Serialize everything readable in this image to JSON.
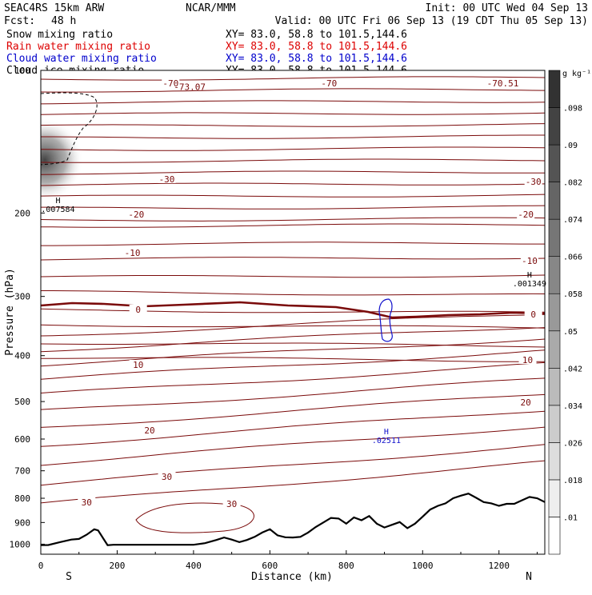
{
  "header": {
    "model": "SEAC4RS 15km ARW",
    "center": "NCAR/MMM",
    "init": "Init: 00 UTC Wed 04 Sep 13",
    "fcst_label": "Fcst:",
    "fcst_value": "48 h",
    "valid": "Valid: 00 UTC Fri 06 Sep 13 (19 CDT Thu 05 Sep 13)"
  },
  "fields": [
    {
      "label": "Snow mixing ratio",
      "xy": "XY=  83.0, 58.8 to 101.5,144.6",
      "color": "#000000"
    },
    {
      "label": "Rain water mixing ratio",
      "xy": "XY=  83.0, 58.8 to 101.5,144.6",
      "color": "#dd0000"
    },
    {
      "label": "Cloud water mixing ratio",
      "xy": "XY=  83.0, 58.8 to 101.5,144.6",
      "color": "#0000cc"
    },
    {
      "label": "Cloud ice mixing ratio",
      "xy": "XY=  83.0, 58.8 to 101.5,144.6",
      "color": "#000000"
    }
  ],
  "colors": {
    "temperature_contour": "#7a0a0a",
    "cloud_water_contour": "#1010cc",
    "terrain": "#000000",
    "snow_shading": "#444444"
  },
  "chart_data": {
    "type": "cross-section contour",
    "xlabel": "Distance (km)",
    "ylabel": "Pressure (hPa)",
    "xlim": [
      0,
      1320
    ],
    "ylim": [
      1050,
      100
    ],
    "y_scale": "log-pressure",
    "x_ticks": [
      0,
      200,
      400,
      600,
      800,
      1000,
      1200
    ],
    "y_ticks": [
      1000,
      900,
      800,
      700,
      600,
      500,
      400,
      300,
      200,
      100
    ],
    "y_tick_labels": [
      "1000",
      "900",
      "800",
      "700",
      "600",
      "500",
      "400",
      "300",
      "200",
      "100"
    ],
    "endpoints": {
      "left": "S",
      "right": "N"
    },
    "colorbar": {
      "unit": "g kg⁻¹",
      "levels": [
        0.01,
        0.018,
        0.026,
        0.034,
        0.042,
        0.05,
        0.058,
        0.066,
        0.074,
        0.082,
        0.09,
        0.098
      ],
      "labels": [
        ".01",
        ".018",
        ".026",
        ".034",
        ".042",
        ".05",
        ".058",
        ".066",
        ".074",
        ".082",
        ".09",
        ".098"
      ]
    },
    "temperature_contours_C": {
      "interval": 5,
      "labeled": [
        {
          "value": -70,
          "label": "-70",
          "x_km": 340
        },
        {
          "value": -70,
          "label": "-70",
          "x_km": 755
        },
        {
          "value": -30,
          "label": "-30",
          "x_km": 330
        },
        {
          "value": -30,
          "label": "-30",
          "x_km": 1290
        },
        {
          "value": -20,
          "label": "-20",
          "x_km": 250
        },
        {
          "value": -20,
          "label": "-20",
          "x_km": 1270
        },
        {
          "value": -10,
          "label": "-10",
          "x_km": 240
        },
        {
          "value": -10,
          "label": "-10",
          "x_km": 1280
        },
        {
          "value": 0,
          "label": "0",
          "x_km": 255
        },
        {
          "value": 0,
          "label": "0",
          "x_km": 1290
        },
        {
          "value": 10,
          "label": "10",
          "x_km": 255
        },
        {
          "value": 10,
          "label": "10",
          "x_km": 1275
        },
        {
          "value": 20,
          "label": "20",
          "x_km": 285
        },
        {
          "value": 20,
          "label": "20",
          "x_km": 1270
        },
        {
          "value": 30,
          "label": "30",
          "x_km": 120
        },
        {
          "value": 30,
          "label": "30",
          "x_km": 330
        },
        {
          "value": 30,
          "label": "30",
          "x_km": 500
        }
      ]
    },
    "extrema": [
      {
        "kind": "H",
        "value": "-73.07",
        "x_km": 390,
        "p_hPa": 110
      },
      {
        "kind": "H",
        "value": "-70.51",
        "x_km": 1210,
        "p_hPa": 108
      },
      {
        "kind": "H",
        "value": ".007584",
        "x_km": 45,
        "p_hPa": 195,
        "field": "snow"
      },
      {
        "kind": "H",
        "value": ".001349",
        "x_km": 1280,
        "p_hPa": 280,
        "field": "snow"
      },
      {
        "kind": "H",
        "value": ".02511",
        "x_km": 905,
        "p_hPa": 600,
        "field": "cloud water"
      }
    ],
    "terrain_pressure_hPa": {
      "x_km": [
        0,
        20,
        50,
        80,
        100,
        120,
        140,
        150,
        175,
        190,
        250,
        300,
        350,
        380,
        400,
        430,
        460,
        480,
        500,
        520,
        540,
        560,
        580,
        600,
        620,
        640,
        660,
        680,
        700,
        720,
        740,
        760,
        780,
        800,
        820,
        840,
        860,
        880,
        900,
        920,
        940,
        960,
        980,
        1000,
        1020,
        1040,
        1060,
        1080,
        1100,
        1120,
        1140,
        1160,
        1180,
        1200,
        1220,
        1240,
        1260,
        1280,
        1300,
        1320
      ],
      "p": [
        1005,
        1004,
        990,
        978,
        975,
        955,
        930,
        935,
        1005,
        1003,
        1003,
        1003,
        1003,
        1003,
        1003,
        995,
        980,
        968,
        978,
        990,
        980,
        965,
        945,
        930,
        958,
        967,
        968,
        965,
        945,
        920,
        900,
        880,
        883,
        905,
        878,
        890,
        872,
        905,
        922,
        910,
        898,
        925,
        905,
        875,
        845,
        830,
        820,
        800,
        790,
        782,
        798,
        815,
        820,
        830,
        822,
        822,
        808,
        795,
        800,
        815
      ]
    }
  }
}
